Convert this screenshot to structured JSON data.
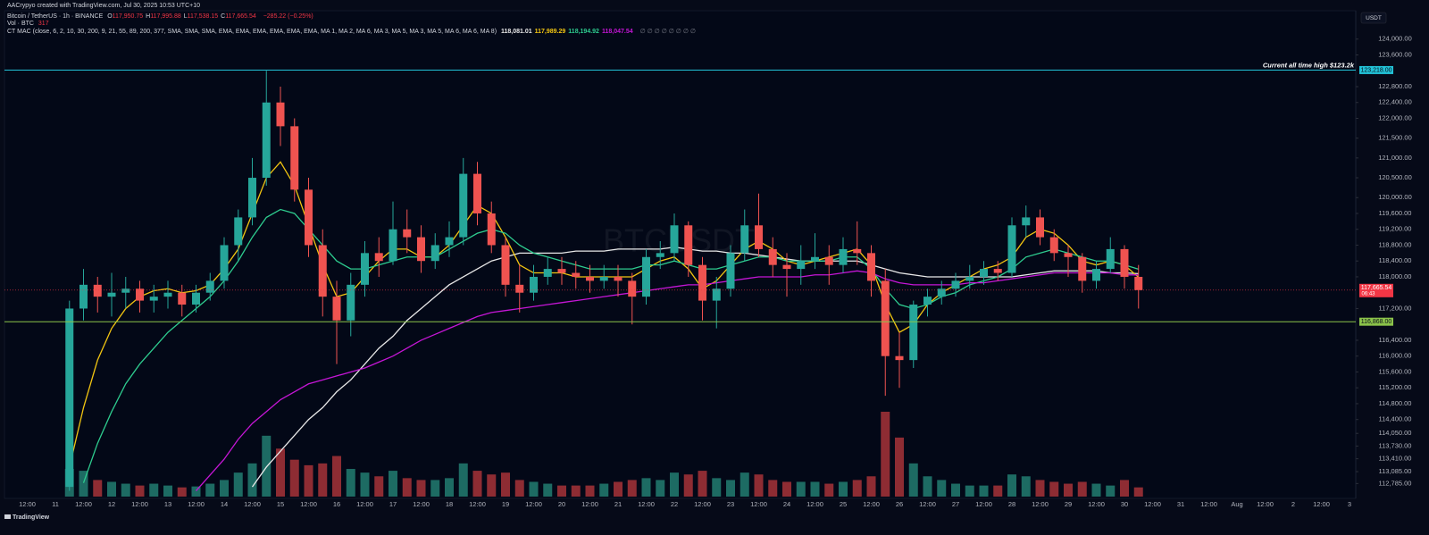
{
  "header": {
    "credit": "AACrypyo created with TradingView.com, Jul 30, 2025 10:53 UTC+10",
    "symbol": "Bitcoin / TetherUS · 1h · BINANCE",
    "ohlc": [
      {
        "key": "O",
        "label": "117,950.75"
      },
      {
        "key": "H",
        "label": "117,995.88"
      },
      {
        "key": "L",
        "label": "117,538.15"
      },
      {
        "key": "C",
        "label": "117,665.54"
      }
    ],
    "change": "−285.22 (−0.25%)",
    "volume_title": "Vol · BTC",
    "volume_label": "317",
    "indicator": "CT MAC (close, 6, 2, 10, 30, 200, 9, 21, 55, 89, 200, 377, SMA, SMA, SMA, EMA, EMA, EMA, EMA, EMA, EMA, MA 1, MA 2, MA 6, MA 3, MA 5, MA 3, MA 5, MA 6, MA 6, MA 8)",
    "currency": "USDT"
  },
  "chart_data": {
    "type": "candlestick",
    "watermark": "BTCUSDT",
    "up_color": "#26a69a",
    "down_color": "#ef5350",
    "ylim": [
      112500,
      124400
    ],
    "yticks": [
      {
        "value": 124000,
        "label": "124,000.00"
      },
      {
        "value": 123600,
        "label": "123,600.00"
      },
      {
        "value": 122800,
        "label": "122,800.00"
      },
      {
        "value": 122400,
        "label": "122,400.00"
      },
      {
        "value": 122000,
        "label": "122,000.00"
      },
      {
        "value": 121500,
        "label": "121,500.00"
      },
      {
        "value": 121000,
        "label": "121,000.00"
      },
      {
        "value": 120500,
        "label": "120,500.00"
      },
      {
        "value": 120000,
        "label": "120,000.00"
      },
      {
        "value": 119600,
        "label": "119,600.00"
      },
      {
        "value": 119200,
        "label": "119,200.00"
      },
      {
        "value": 118800,
        "label": "118,800.00"
      },
      {
        "value": 118400,
        "label": "118,400.00"
      },
      {
        "value": 118000,
        "label": "118,000.00"
      },
      {
        "value": 117200,
        "label": "117,200.00"
      },
      {
        "value": 116400,
        "label": "116,400.00"
      },
      {
        "value": 116000,
        "label": "116,000.00"
      },
      {
        "value": 115600,
        "label": "115,600.00"
      },
      {
        "value": 115200,
        "label": "115,200.00"
      },
      {
        "value": 114800,
        "label": "114,800.00"
      },
      {
        "value": 114400,
        "label": "114,400.00"
      },
      {
        "value": 114050,
        "label": "114,050.00"
      },
      {
        "value": 113730,
        "label": "113,730.00"
      },
      {
        "value": 113410,
        "label": "113,410.00"
      },
      {
        "value": 113085,
        "label": "113,085.00"
      },
      {
        "value": 112785,
        "label": "112,785.00"
      }
    ],
    "xtick_labels": [
      "12:00",
      "11",
      "12:00",
      "12",
      "12:00",
      "13",
      "12:00",
      "14",
      "12:00",
      "15",
      "12:00",
      "16",
      "12:00",
      "17",
      "12:00",
      "18",
      "12:00",
      "19",
      "12:00",
      "20",
      "12:00",
      "21",
      "12:00",
      "22",
      "12:00",
      "23",
      "12:00",
      "24",
      "12:00",
      "25",
      "12:00",
      "26",
      "12:00",
      "27",
      "12:00",
      "28",
      "12:00",
      "29",
      "12:00",
      "30",
      "12:00",
      "31",
      "12:00",
      "Aug",
      "12:00",
      "2",
      "12:00",
      "3"
    ],
    "candles": [
      [
        112700,
        117400,
        112600,
        117200
      ],
      [
        117200,
        118200,
        116900,
        117800
      ],
      [
        117800,
        118000,
        117100,
        117500
      ],
      [
        117500,
        118100,
        117000,
        117600
      ],
      [
        117600,
        118000,
        117200,
        117700
      ],
      [
        117700,
        117900,
        117100,
        117400
      ],
      [
        117400,
        117800,
        117100,
        117500
      ],
      [
        117500,
        117900,
        117200,
        117600
      ],
      [
        117600,
        117800,
        117000,
        117300
      ],
      [
        117300,
        117800,
        117100,
        117600
      ],
      [
        117600,
        118100,
        117400,
        117900
      ],
      [
        117900,
        119000,
        117700,
        118800
      ],
      [
        118800,
        119700,
        118400,
        119500
      ],
      [
        119500,
        121000,
        119300,
        120500
      ],
      [
        120500,
        123200,
        120300,
        122400
      ],
      [
        122400,
        122800,
        121300,
        121800
      ],
      [
        121800,
        122000,
        119900,
        120200
      ],
      [
        120200,
        120500,
        118500,
        118800
      ],
      [
        118800,
        119200,
        117000,
        117500
      ],
      [
        117500,
        117900,
        115800,
        116900
      ],
      [
        116900,
        118100,
        116500,
        117800
      ],
      [
        117800,
        118900,
        117500,
        118600
      ],
      [
        118600,
        119000,
        118000,
        118400
      ],
      [
        118400,
        119900,
        118300,
        119200
      ],
      [
        119200,
        119700,
        118600,
        119000
      ],
      [
        119000,
        119300,
        118100,
        118400
      ],
      [
        118400,
        119100,
        118200,
        118800
      ],
      [
        118800,
        119400,
        118500,
        119000
      ],
      [
        119000,
        121000,
        118800,
        120600
      ],
      [
        120600,
        120900,
        119300,
        119600
      ],
      [
        119600,
        119900,
        118600,
        118800
      ],
      [
        118800,
        119000,
        117500,
        117800
      ],
      [
        117800,
        118300,
        117100,
        117600
      ],
      [
        117600,
        118300,
        117400,
        118000
      ],
      [
        118000,
        118500,
        117800,
        118200
      ],
      [
        118200,
        118500,
        117800,
        118100
      ],
      [
        118100,
        118400,
        117700,
        118000
      ],
      [
        118000,
        118300,
        117600,
        117900
      ],
      [
        117900,
        118300,
        117700,
        118000
      ],
      [
        118000,
        118300,
        117500,
        117900
      ],
      [
        117900,
        118100,
        116800,
        117500
      ],
      [
        117500,
        118700,
        117300,
        118500
      ],
      [
        118500,
        118900,
        118200,
        118600
      ],
      [
        118600,
        119600,
        118400,
        119300
      ],
      [
        119300,
        119400,
        118000,
        118300
      ],
      [
        118300,
        118500,
        116900,
        117400
      ],
      [
        117400,
        118000,
        116700,
        117700
      ],
      [
        117700,
        118800,
        117500,
        118600
      ],
      [
        118600,
        119700,
        118400,
        119300
      ],
      [
        119300,
        120100,
        118500,
        118700
      ],
      [
        118700,
        119000,
        118000,
        118300
      ],
      [
        118300,
        118600,
        117500,
        118200
      ],
      [
        118200,
        118800,
        117800,
        118400
      ],
      [
        118400,
        119100,
        118200,
        118500
      ],
      [
        118500,
        118800,
        117800,
        118300
      ],
      [
        118300,
        119000,
        118100,
        118700
      ],
      [
        118700,
        119400,
        118300,
        118600
      ],
      [
        118600,
        118800,
        117500,
        117900
      ],
      [
        117900,
        118200,
        115000,
        116000
      ],
      [
        116000,
        116600,
        115200,
        115900
      ],
      [
        115900,
        117400,
        115700,
        117300
      ],
      [
        117300,
        117700,
        117000,
        117500
      ],
      [
        117500,
        117900,
        117300,
        117700
      ],
      [
        117700,
        118100,
        117500,
        117900
      ],
      [
        117900,
        118300,
        117700,
        118000
      ],
      [
        118000,
        118400,
        117800,
        118200
      ],
      [
        118200,
        118400,
        117900,
        118100
      ],
      [
        118100,
        119500,
        118000,
        119300
      ],
      [
        119300,
        119800,
        119000,
        119500
      ],
      [
        119500,
        119700,
        118800,
        119000
      ],
      [
        119000,
        119200,
        118400,
        118600
      ],
      [
        118600,
        118800,
        118000,
        118500
      ],
      [
        118500,
        118600,
        117600,
        117900
      ],
      [
        117900,
        118400,
        117700,
        118200
      ],
      [
        118200,
        119000,
        118100,
        118700
      ],
      [
        118700,
        118800,
        117700,
        118000
      ],
      [
        118000,
        118300,
        117200,
        117665.54
      ]
    ],
    "volume": [
      1500,
      1400,
      900,
      800,
      700,
      600,
      700,
      600,
      500,
      550,
      700,
      900,
      1300,
      1800,
      3300,
      2600,
      2000,
      1700,
      1800,
      2200,
      1500,
      1300,
      1100,
      1400,
      1000,
      900,
      900,
      1000,
      1800,
      1400,
      1200,
      1300,
      900,
      800,
      700,
      600,
      600,
      600,
      700,
      800,
      900,
      1000,
      900,
      1300,
      1200,
      1400,
      1000,
      900,
      1300,
      1200,
      900,
      800,
      800,
      800,
      700,
      800,
      900,
      1100,
      4600,
      3200,
      1800,
      1100,
      900,
      700,
      600,
      600,
      600,
      1200,
      1100,
      900,
      800,
      700,
      800,
      700,
      600,
      900,
      500
    ],
    "series": [
      {
        "color": "#e8e8e8",
        "last_label": "118,081.01",
        "values": [
          null,
          null,
          null,
          null,
          null,
          null,
          null,
          null,
          null,
          null,
          null,
          null,
          null,
          112700,
          113200,
          113600,
          114000,
          114400,
          114700,
          115100,
          115400,
          115800,
          116200,
          116500,
          116900,
          117200,
          117500,
          117800,
          118000,
          118200,
          118400,
          118500,
          118600,
          118600,
          118600,
          118600,
          118650,
          118650,
          118650,
          118700,
          118700,
          118700,
          118700,
          118750,
          118700,
          118650,
          118650,
          118600,
          118600,
          118550,
          118500,
          118450,
          118400,
          118400,
          118400,
          118400,
          118400,
          118300,
          118200,
          118100,
          118050,
          118000,
          118000,
          118000,
          118000,
          118000,
          118000,
          118000,
          118050,
          118100,
          118150,
          118150,
          118150,
          118150,
          118100,
          118100,
          118081.01
        ]
      },
      {
        "color": "#f2c511",
        "last_label": "117,989.29",
        "values": [
          113200,
          114700,
          115900,
          116700,
          117200,
          117500,
          117650,
          117700,
          117600,
          117650,
          117800,
          118200,
          118700,
          119600,
          120500,
          120900,
          120300,
          119300,
          118300,
          117500,
          117600,
          118000,
          118400,
          118700,
          118700,
          118500,
          118500,
          118800,
          119300,
          119800,
          119600,
          119000,
          118300,
          118100,
          118100,
          118100,
          118000,
          118000,
          118000,
          118000,
          118000,
          118200,
          118400,
          118500,
          118200,
          117700,
          117900,
          118300,
          118700,
          118900,
          118700,
          118400,
          118300,
          118400,
          118500,
          118600,
          118700,
          118300,
          117300,
          116600,
          116800,
          117300,
          117600,
          117800,
          118000,
          118200,
          118300,
          118500,
          119000,
          119200,
          119100,
          118800,
          118400,
          118300,
          118400,
          118300,
          117989.29
        ]
      },
      {
        "color": "#2ecc8f",
        "last_label": "118,194.92",
        "values": [
          null,
          112800,
          113800,
          114600,
          115300,
          115800,
          116200,
          116600,
          116900,
          117200,
          117500,
          117900,
          118400,
          119000,
          119500,
          119700,
          119600,
          119200,
          118800,
          118400,
          118200,
          118200,
          118300,
          118400,
          118500,
          118500,
          118500,
          118700,
          118900,
          119100,
          119200,
          119100,
          118800,
          118600,
          118500,
          118400,
          118300,
          118200,
          118200,
          118200,
          118200,
          118300,
          118300,
          118400,
          118300,
          118200,
          118200,
          118300,
          118400,
          118500,
          118500,
          118400,
          118400,
          118400,
          118400,
          118500,
          118500,
          118200,
          117700,
          117300,
          117200,
          117300,
          117500,
          117600,
          117800,
          117900,
          118000,
          118200,
          118500,
          118600,
          118700,
          118600,
          118500,
          118400,
          118400,
          118300,
          118194.92
        ]
      },
      {
        "color": "#c516d6",
        "last_label": "118,047.54",
        "values": [
          null,
          null,
          null,
          null,
          null,
          null,
          null,
          null,
          null,
          112600,
          113000,
          113400,
          113900,
          114300,
          114600,
          114900,
          115100,
          115300,
          115400,
          115500,
          115600,
          115700,
          115850,
          116000,
          116200,
          116400,
          116550,
          116700,
          116850,
          117000,
          117100,
          117150,
          117200,
          117250,
          117300,
          117350,
          117400,
          117450,
          117500,
          117550,
          117600,
          117650,
          117700,
          117750,
          117800,
          117800,
          117850,
          117900,
          117950,
          118000,
          118000,
          118000,
          118000,
          118050,
          118050,
          118100,
          118150,
          118100,
          117950,
          117850,
          117800,
          117800,
          117800,
          117800,
          117850,
          117850,
          117900,
          117950,
          118000,
          118050,
          118100,
          118100,
          118100,
          118100,
          118100,
          118050,
          118047.54
        ]
      }
    ],
    "levels": [
      {
        "value": 123218,
        "label": "123,218.00",
        "color": "#22c1d6",
        "note": "Current all time high $123.2k"
      },
      {
        "value": 116868,
        "label": "116,868.00",
        "color": "#8bc34a"
      }
    ],
    "last_price": {
      "value": 117665.54,
      "label": "117,665.54",
      "countdown": "06:43",
      "color": "#f23645"
    }
  },
  "footer": {
    "brand": "TradingView"
  }
}
